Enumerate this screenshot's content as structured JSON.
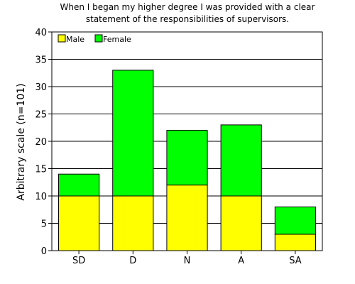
{
  "chart_data": {
    "type": "bar",
    "stacked": true,
    "title": [
      "When I began my higher degree I was provided with a clear",
      "statement of the responsibilities of supervisors."
    ],
    "xlabel": "",
    "ylabel": "Arbitrary scale (n=101)",
    "ylim": [
      0,
      40
    ],
    "yticks": [
      0,
      5,
      10,
      15,
      20,
      25,
      30,
      35,
      40
    ],
    "grid": "horizontal",
    "legend_position": "top-left",
    "categories": [
      "SD",
      "D",
      "N",
      "A",
      "SA"
    ],
    "series": [
      {
        "name": "Male",
        "color": "#ffff00",
        "values": [
          10,
          10,
          12,
          10,
          3
        ]
      },
      {
        "name": "Female",
        "color": "#00ff00",
        "values": [
          4,
          23,
          10,
          13,
          5
        ]
      }
    ]
  }
}
